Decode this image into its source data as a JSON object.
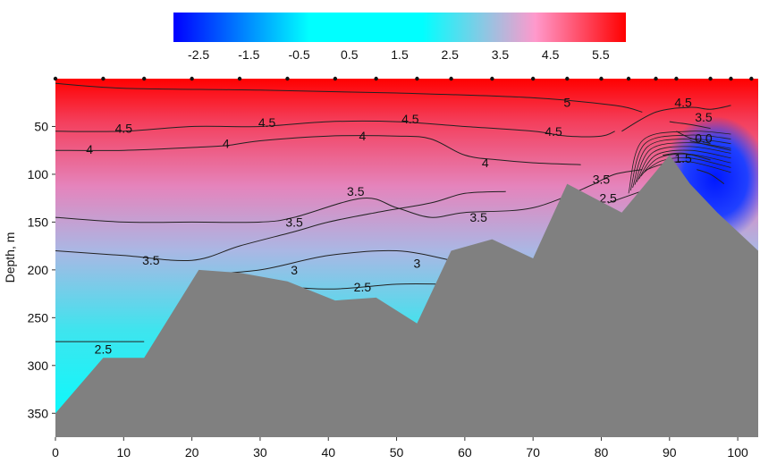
{
  "chart_data": {
    "type": "heatmap",
    "title": "",
    "xlabel": "",
    "ylabel": "Depth, m",
    "xlim": [
      0,
      103
    ],
    "ylim": [
      375,
      0
    ],
    "y_inverted": true,
    "x_ticks": [
      "0",
      "10",
      "20",
      "30",
      "40",
      "50",
      "60",
      "70",
      "80",
      "90",
      "100"
    ],
    "y_ticks": [
      "50",
      "100",
      "150",
      "200",
      "250",
      "300",
      "350"
    ],
    "colorbar": {
      "ticks": [
        "-2.5",
        "-1.5",
        "-0.5",
        "0.5",
        "1.5",
        "2.5",
        "3.5",
        "4.5",
        "5.5"
      ],
      "range": [
        -3,
        6
      ],
      "colors": [
        "#0000ff",
        "#00ffff",
        "#00ffff",
        "#ff99cc",
        "#ff0000"
      ],
      "stops": [
        0,
        0.3,
        0.55,
        0.8,
        1
      ]
    },
    "stations_x": [
      0,
      7,
      13,
      20,
      27,
      34,
      41,
      47,
      53,
      58,
      64,
      70,
      75,
      80,
      84,
      88,
      91,
      96,
      99,
      102
    ],
    "bottom_profile": {
      "x": [
        0,
        7,
        13,
        21,
        27,
        34,
        41,
        47,
        53,
        58,
        64,
        70,
        75,
        83,
        90,
        93,
        97,
        103
      ],
      "depth": [
        350,
        292,
        292,
        200,
        203,
        212,
        232,
        229,
        256,
        180,
        168,
        188,
        110,
        140,
        80,
        110,
        140,
        180
      ]
    },
    "contours": [
      {
        "level": "5",
        "x": [
          0,
          10,
          30,
          50,
          70,
          82,
          86
        ],
        "depth": [
          5,
          10,
          12,
          15,
          20,
          28,
          35
        ]
      },
      {
        "level": "4.5",
        "x": [
          0,
          10,
          20,
          30,
          40,
          50,
          60,
          70,
          75,
          80,
          82
        ],
        "depth": [
          55,
          55,
          50,
          50,
          45,
          45,
          50,
          55,
          60,
          60,
          55
        ]
      },
      {
        "level": "4.5",
        "x": [
          83,
          88,
          93,
          96,
          99
        ],
        "depth": [
          55,
          35,
          30,
          32,
          28
        ]
      },
      {
        "level": "4",
        "x": [
          0,
          10,
          20,
          25,
          30,
          40,
          50,
          55,
          60,
          65,
          70,
          77
        ],
        "depth": [
          75,
          75,
          72,
          70,
          65,
          60,
          60,
          63,
          80,
          85,
          88,
          90
        ]
      },
      {
        "level": "3.5",
        "x": [
          0,
          10,
          20,
          30,
          35,
          45,
          50,
          55,
          60,
          70,
          79
        ],
        "depth": [
          145,
          150,
          150,
          150,
          145,
          125,
          135,
          145,
          140,
          135,
          110
        ]
      },
      {
        "level": "3.5",
        "x": [
          0,
          10,
          20,
          27,
          35,
          40,
          47,
          55,
          60,
          66
        ],
        "depth": [
          180,
          185,
          190,
          175,
          160,
          150,
          140,
          130,
          120,
          118
        ]
      },
      {
        "level": "3",
        "x": [
          21,
          30,
          40,
          50,
          58
        ],
        "depth": [
          205,
          200,
          185,
          180,
          190
        ]
      },
      {
        "level": "2.5",
        "x": [
          29,
          40,
          50,
          57
        ],
        "depth": [
          215,
          220,
          215,
          215
        ]
      },
      {
        "level": "2.5",
        "x": [
          0,
          7,
          13
        ],
        "depth": [
          275,
          275,
          275
        ]
      },
      {
        "level": "3.5",
        "x": [
          79,
          82,
          86
        ],
        "depth": [
          110,
          100,
          95
        ]
      },
      {
        "level": "2.5",
        "x": [
          81,
          85,
          89
        ],
        "depth": [
          130,
          120,
          110
        ]
      },
      {
        "level": "1.5",
        "x": [
          89,
          92,
          96
        ],
        "depth": [
          80,
          78,
          85
        ]
      },
      {
        "level": "1.5",
        "x": [
          94,
          96,
          98
        ],
        "depth": [
          95,
          100,
          110
        ]
      },
      {
        "level": "3.5",
        "x": [
          90,
          93,
          96
        ],
        "depth": [
          45,
          48,
          52
        ]
      },
      {
        "level": "0.0",
        "x": [
          91,
          93,
          96
        ],
        "depth": [
          55,
          62,
          68
        ]
      },
      {
        "level": "-1",
        "x": [
          93,
          96,
          99
        ],
        "depth": [
          65,
          70,
          75
        ]
      }
    ],
    "contour_labels": [
      {
        "text": "5",
        "x": 75,
        "depth": 25
      },
      {
        "text": "4.5",
        "x": 92,
        "depth": 25
      },
      {
        "text": "4.5",
        "x": 10,
        "depth": 52
      },
      {
        "text": "4.5",
        "x": 31,
        "depth": 46
      },
      {
        "text": "4.5",
        "x": 52,
        "depth": 42
      },
      {
        "text": "4.5",
        "x": 73,
        "depth": 55
      },
      {
        "text": "4",
        "x": 5,
        "depth": 74
      },
      {
        "text": "4",
        "x": 25,
        "depth": 68
      },
      {
        "text": "4",
        "x": 45,
        "depth": 60
      },
      {
        "text": "4",
        "x": 63,
        "depth": 88
      },
      {
        "text": "3.5",
        "x": 44,
        "depth": 118
      },
      {
        "text": "3.5",
        "x": 35,
        "depth": 150
      },
      {
        "text": "3.5",
        "x": 62,
        "depth": 145
      },
      {
        "text": "3.5",
        "x": 14,
        "depth": 190
      },
      {
        "text": "3",
        "x": 35,
        "depth": 200
      },
      {
        "text": "3",
        "x": 53,
        "depth": 193
      },
      {
        "text": "2.5",
        "x": 45,
        "depth": 218
      },
      {
        "text": "2.5",
        "x": 7,
        "depth": 283
      },
      {
        "text": "3.5",
        "x": 80,
        "depth": 105
      },
      {
        "text": "2.5",
        "x": 81,
        "depth": 125
      },
      {
        "text": "1.5",
        "x": 92,
        "depth": 83
      },
      {
        "text": "3.5",
        "x": 95,
        "depth": 40
      },
      {
        "text": "0.0",
        "x": 95,
        "depth": 62
      }
    ]
  }
}
